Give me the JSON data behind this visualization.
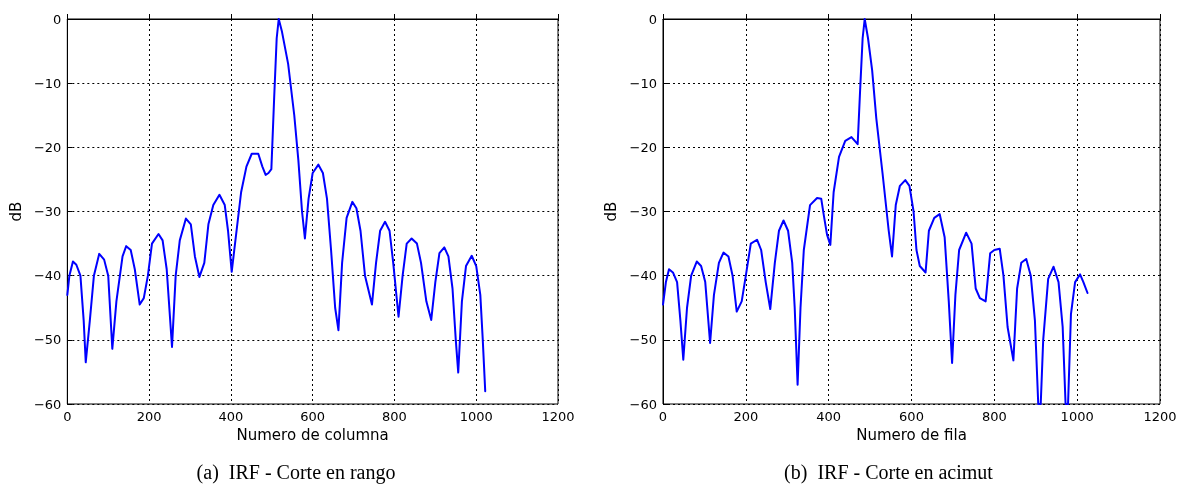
{
  "chart_data": [
    {
      "type": "line",
      "title": "(a)  IRF - Corte en rango",
      "xlabel": "Numero de columna",
      "ylabel": "dB",
      "xlim": [
        0,
        1200
      ],
      "xticks": [
        0,
        200,
        400,
        600,
        800,
        1000,
        1200
      ],
      "ylim": [
        -60,
        0
      ],
      "yticks": [
        {
          "value": -60,
          "label": "−60"
        },
        {
          "value": -50,
          "label": "−50"
        },
        {
          "value": -40,
          "label": "−40"
        },
        {
          "value": -30,
          "label": "−30"
        },
        {
          "value": -20,
          "label": "−20"
        },
        {
          "value": -10,
          "label": "−10"
        },
        0
      ],
      "grid": true,
      "marker": "none",
      "line_style": "solid",
      "series": [
        {
          "color": "#0000ff",
          "x": [
            0,
            5,
            13.7,
            22,
            32,
            40,
            45,
            55,
            65,
            78,
            90,
            100,
            110,
            120,
            135,
            144,
            155,
            165,
            177,
            187,
            197,
            207,
            223,
            233,
            243,
            256,
            265,
            275,
            290,
            302,
            312,
            323,
            335,
            345,
            357,
            372,
            385,
            393,
            402,
            412,
            425,
            438,
            451,
            467,
            477,
            485,
            492,
            499,
            506,
            512,
            517,
            525,
            540,
            555,
            565,
            574,
            581,
            590,
            600,
            614,
            625,
            635,
            645,
            655,
            663,
            672,
            683,
            697,
            707,
            717,
            728,
            745,
            755,
            765,
            777,
            788,
            797,
            810,
            820,
            830,
            842,
            855,
            865,
            878,
            890,
            900,
            910,
            922,
            932,
            942,
            950,
            956,
            965,
            975,
            989,
            1000,
            1010,
            1016,
            1022
          ],
          "values": [
            -43,
            -40,
            -37.8,
            -38.3,
            -40,
            -47,
            -53.5,
            -47,
            -40,
            -36.6,
            -37.5,
            -40,
            -51.4,
            -44,
            -37,
            -35.4,
            -36,
            -39,
            -44.5,
            -43.5,
            -40,
            -35,
            -33.5,
            -34.5,
            -39,
            -51.1,
            -40,
            -34.5,
            -31.1,
            -32,
            -37,
            -40.2,
            -38,
            -32,
            -29,
            -27.4,
            -29,
            -33,
            -39.4,
            -34,
            -27,
            -23,
            -21,
            -21,
            -23,
            -24.3,
            -24,
            -23.4,
            -12,
            -3,
            0,
            -2,
            -7,
            -15,
            -22,
            -30,
            -34.2,
            -28,
            -24,
            -22.7,
            -24,
            -28,
            -36,
            -45,
            -48.5,
            -38,
            -31,
            -28.5,
            -29.5,
            -33,
            -40,
            -44.5,
            -38,
            -33,
            -31.6,
            -33,
            -38,
            -46.4,
            -40,
            -35,
            -34.2,
            -35,
            -38,
            -44,
            -46.9,
            -41,
            -36.5,
            -35.6,
            -37,
            -42,
            -50,
            -55.1,
            -44,
            -38.5,
            -36.9,
            -38.5,
            -43,
            -50,
            -58
          ]
        }
      ]
    },
    {
      "type": "line",
      "title": "(b)  IRF - Corte en acimut",
      "xlabel": "Numero de fila",
      "ylabel": "dB",
      "xlim": [
        0,
        1200
      ],
      "xticks": [
        0,
        200,
        400,
        600,
        800,
        1000,
        1200
      ],
      "ylim": [
        -60,
        0
      ],
      "yticks": [
        {
          "value": -60,
          "label": "−60"
        },
        {
          "value": -50,
          "label": "−50"
        },
        {
          "value": -40,
          "label": "−40"
        },
        {
          "value": -30,
          "label": "−30"
        },
        {
          "value": -20,
          "label": "−20"
        },
        {
          "value": -10,
          "label": "−10"
        },
        0
      ],
      "grid": true,
      "marker": "none",
      "line_style": "solid",
      "series": [
        {
          "color": "#0000ff",
          "x": [
            0,
            7,
            14.5,
            24,
            34,
            42,
            49,
            58,
            68,
            81.5,
            92,
            102,
            113.7,
            123,
            135,
            146,
            158,
            168,
            178,
            190,
            200,
            212,
            227,
            237,
            248,
            259,
            270,
            280,
            291,
            302,
            312,
            318,
            325,
            332,
            340,
            355,
            372,
            382,
            388,
            396,
            404,
            412,
            425,
            440,
            455,
            470,
            476,
            482,
            487,
            495,
            505,
            515,
            530,
            545,
            553,
            562,
            572,
            585,
            595,
            605,
            612,
            620,
            634,
            642,
            655,
            668,
            680,
            690,
            698,
            706,
            715,
            732,
            745,
            755,
            765,
            779,
            790,
            800,
            813,
            822,
            832,
            846,
            855,
            865,
            877,
            888,
            898,
            906,
            912,
            918,
            930,
            943,
            955,
            965,
            972,
            978,
            985,
            995,
            1007,
            1015,
            1025
          ],
          "values": [
            -44.5,
            -41,
            -39,
            -39.5,
            -41,
            -47,
            -53.1,
            -45,
            -40,
            -37.8,
            -38.5,
            -41,
            -50.5,
            -43,
            -38,
            -36.4,
            -37,
            -40,
            -45.6,
            -44,
            -40,
            -35,
            -34.4,
            -36,
            -41,
            -45.2,
            -38,
            -33,
            -31.4,
            -33,
            -38,
            -45,
            -57,
            -45,
            -36,
            -29,
            -27.9,
            -28,
            -30.5,
            -33.6,
            -35.2,
            -27,
            -21.5,
            -19,
            -18.4,
            -19.5,
            -11,
            -3,
            0,
            -3,
            -8,
            -15.5,
            -24,
            -33,
            -37,
            -29,
            -26,
            -25.1,
            -26,
            -30,
            -36,
            -38.5,
            -39.5,
            -33,
            -31,
            -30.4,
            -34,
            -44,
            -53.6,
            -43,
            -36,
            -33.3,
            -35,
            -42,
            -43.5,
            -44,
            -36.5,
            -36,
            -35.8,
            -40,
            -48,
            -53.2,
            -42,
            -38,
            -37.4,
            -40,
            -47,
            -60,
            -60,
            -50,
            -40.5,
            -38.6,
            -41,
            -48,
            -60,
            -60,
            -46,
            -41,
            -39.8,
            -41,
            -42.7
          ]
        }
      ]
    }
  ]
}
